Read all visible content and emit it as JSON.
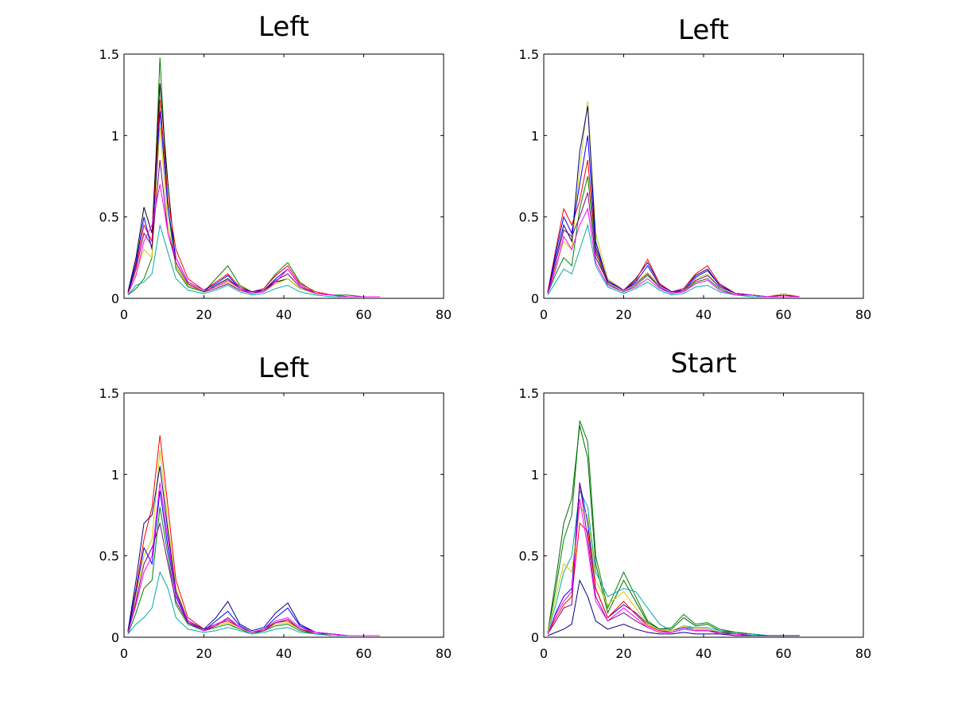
{
  "chart_data": [
    {
      "type": "line",
      "title": "Left",
      "xlim": [
        0,
        80
      ],
      "ylim": [
        0,
        1.5
      ],
      "xticks": [
        "0",
        "20",
        "40",
        "60",
        "80"
      ],
      "yticks": [
        "0",
        "0.5",
        "1",
        "1.5"
      ],
      "grid": false,
      "legend": "none",
      "x": [
        1,
        3,
        5,
        7,
        9,
        11,
        13,
        16,
        20,
        23,
        26,
        29,
        32,
        35,
        38,
        41,
        44,
        48,
        52,
        56,
        60,
        64
      ],
      "series": [
        {
          "color": "#008000",
          "values": [
            0.02,
            0.06,
            0.12,
            0.25,
            1.48,
            0.55,
            0.18,
            0.07,
            0.04,
            0.12,
            0.2,
            0.08,
            0.04,
            0.06,
            0.15,
            0.22,
            0.1,
            0.03,
            0.02,
            0.02,
            0.01,
            0.01
          ]
        },
        {
          "color": "#000000",
          "values": [
            0.04,
            0.25,
            0.56,
            0.4,
            1.32,
            0.7,
            0.2,
            0.08,
            0.04,
            0.08,
            0.12,
            0.06,
            0.03,
            0.05,
            0.1,
            0.12,
            0.06,
            0.03,
            0.02,
            0.01,
            0.01,
            0.01
          ]
        },
        {
          "color": "#ff0000",
          "values": [
            0.03,
            0.2,
            0.45,
            0.35,
            1.22,
            0.6,
            0.3,
            0.12,
            0.05,
            0.1,
            0.15,
            0.07,
            0.04,
            0.06,
            0.14,
            0.2,
            0.09,
            0.04,
            0.02,
            0.01,
            0.01,
            0.01
          ]
        },
        {
          "color": "#0000ff",
          "values": [
            0.03,
            0.22,
            0.5,
            0.3,
            1.15,
            0.55,
            0.25,
            0.1,
            0.05,
            0.09,
            0.14,
            0.06,
            0.04,
            0.05,
            0.12,
            0.18,
            0.08,
            0.03,
            0.02,
            0.01,
            0.01,
            0.01
          ]
        },
        {
          "color": "#cccc00",
          "values": [
            0.02,
            0.15,
            0.3,
            0.25,
            1.05,
            0.45,
            0.2,
            0.08,
            0.04,
            0.07,
            0.1,
            0.05,
            0.03,
            0.04,
            0.09,
            0.12,
            0.06,
            0.03,
            0.02,
            0.01,
            0.01,
            0.01
          ]
        },
        {
          "color": "#800080",
          "values": [
            0.03,
            0.18,
            0.4,
            0.32,
            0.85,
            0.4,
            0.22,
            0.09,
            0.04,
            0.06,
            0.09,
            0.05,
            0.03,
            0.05,
            0.11,
            0.15,
            0.07,
            0.03,
            0.02,
            0.01,
            0.01,
            0.01
          ]
        },
        {
          "color": "#00aaaa",
          "values": [
            0.02,
            0.08,
            0.1,
            0.15,
            0.45,
            0.28,
            0.12,
            0.05,
            0.03,
            0.05,
            0.08,
            0.04,
            0.02,
            0.03,
            0.06,
            0.08,
            0.04,
            0.02,
            0.01,
            0.01,
            0.01,
            0.01
          ]
        },
        {
          "color": "#ff00ff",
          "values": [
            0.03,
            0.14,
            0.35,
            0.45,
            0.7,
            0.4,
            0.25,
            0.1,
            0.05,
            0.07,
            0.11,
            0.06,
            0.03,
            0.04,
            0.1,
            0.18,
            0.08,
            0.03,
            0.02,
            0.01,
            0.01,
            0.01
          ]
        }
      ]
    },
    {
      "type": "line",
      "title": "Left",
      "xlim": [
        0,
        80
      ],
      "ylim": [
        0,
        1.5
      ],
      "xticks": [
        "0",
        "20",
        "40",
        "60",
        "80"
      ],
      "yticks": [
        "0",
        "0.5",
        "1",
        "1.5"
      ],
      "grid": false,
      "legend": "none",
      "x": [
        1,
        3,
        5,
        7,
        9,
        11,
        13,
        16,
        20,
        23,
        26,
        29,
        32,
        35,
        38,
        41,
        44,
        48,
        52,
        56,
        60,
        64
      ],
      "series": [
        {
          "color": "#cccc00",
          "values": [
            0.03,
            0.2,
            0.35,
            0.3,
            0.8,
            1.21,
            0.4,
            0.12,
            0.05,
            0.1,
            0.16,
            0.08,
            0.04,
            0.05,
            0.12,
            0.15,
            0.07,
            0.03,
            0.02,
            0.01,
            0.03,
            0.01
          ]
        },
        {
          "color": "#000080",
          "values": [
            0.04,
            0.25,
            0.45,
            0.35,
            0.9,
            1.18,
            0.35,
            0.1,
            0.05,
            0.12,
            0.22,
            0.09,
            0.04,
            0.06,
            0.14,
            0.18,
            0.08,
            0.03,
            0.02,
            0.01,
            0.02,
            0.01
          ]
        },
        {
          "color": "#ff0000",
          "values": [
            0.04,
            0.3,
            0.55,
            0.45,
            0.6,
            0.85,
            0.3,
            0.1,
            0.05,
            0.11,
            0.24,
            0.09,
            0.04,
            0.06,
            0.15,
            0.2,
            0.09,
            0.03,
            0.02,
            0.01,
            0.02,
            0.01
          ]
        },
        {
          "color": "#0000ff",
          "values": [
            0.03,
            0.28,
            0.5,
            0.4,
            0.7,
            1.0,
            0.32,
            0.11,
            0.05,
            0.1,
            0.2,
            0.08,
            0.04,
            0.05,
            0.13,
            0.17,
            0.08,
            0.03,
            0.02,
            0.01,
            0.01,
            0.01
          ]
        },
        {
          "color": "#008000",
          "values": [
            0.03,
            0.15,
            0.25,
            0.2,
            0.55,
            0.75,
            0.28,
            0.09,
            0.04,
            0.08,
            0.14,
            0.07,
            0.03,
            0.04,
            0.1,
            0.12,
            0.06,
            0.02,
            0.02,
            0.01,
            0.01,
            0.01
          ]
        },
        {
          "color": "#800080",
          "values": [
            0.03,
            0.22,
            0.42,
            0.38,
            0.5,
            0.65,
            0.25,
            0.1,
            0.05,
            0.09,
            0.15,
            0.07,
            0.03,
            0.05,
            0.11,
            0.14,
            0.07,
            0.03,
            0.02,
            0.01,
            0.02,
            0.01
          ]
        },
        {
          "color": "#00aaaa",
          "values": [
            0.02,
            0.1,
            0.18,
            0.15,
            0.3,
            0.45,
            0.2,
            0.07,
            0.03,
            0.06,
            0.1,
            0.05,
            0.02,
            0.03,
            0.07,
            0.08,
            0.04,
            0.02,
            0.01,
            0.01,
            0.01,
            0.01
          ]
        },
        {
          "color": "#ff00ff",
          "values": [
            0.03,
            0.18,
            0.38,
            0.3,
            0.45,
            0.55,
            0.22,
            0.08,
            0.04,
            0.07,
            0.12,
            0.06,
            0.03,
            0.04,
            0.09,
            0.11,
            0.05,
            0.02,
            0.02,
            0.01,
            0.01,
            0.01
          ]
        }
      ]
    },
    {
      "type": "line",
      "title": "Left",
      "xlim": [
        0,
        80
      ],
      "ylim": [
        0,
        1.5
      ],
      "xticks": [
        "0",
        "20",
        "40",
        "60",
        "80"
      ],
      "yticks": [
        "0",
        "0.5",
        "1",
        "1.5"
      ],
      "grid": false,
      "legend": "none",
      "x": [
        1,
        3,
        5,
        7,
        9,
        11,
        13,
        16,
        20,
        23,
        26,
        29,
        32,
        35,
        38,
        41,
        44,
        48,
        52,
        56,
        60,
        64
      ],
      "series": [
        {
          "color": "#ff0000",
          "values": [
            0.04,
            0.3,
            0.6,
            0.8,
            1.24,
            0.8,
            0.35,
            0.12,
            0.05,
            0.08,
            0.1,
            0.06,
            0.03,
            0.05,
            0.09,
            0.1,
            0.05,
            0.03,
            0.02,
            0.01,
            0.01,
            0.01
          ]
        },
        {
          "color": "#cccc00",
          "values": [
            0.03,
            0.25,
            0.5,
            0.6,
            1.15,
            0.7,
            0.3,
            0.1,
            0.04,
            0.07,
            0.09,
            0.05,
            0.03,
            0.04,
            0.08,
            0.09,
            0.05,
            0.02,
            0.02,
            0.01,
            0.01,
            0.01
          ]
        },
        {
          "color": "#000080",
          "values": [
            0.04,
            0.35,
            0.7,
            0.75,
            1.05,
            0.65,
            0.28,
            0.1,
            0.05,
            0.12,
            0.22,
            0.08,
            0.04,
            0.06,
            0.15,
            0.21,
            0.08,
            0.03,
            0.02,
            0.01,
            0.01,
            0.01
          ]
        },
        {
          "color": "#0000ff",
          "values": [
            0.03,
            0.28,
            0.55,
            0.45,
            0.9,
            0.55,
            0.25,
            0.09,
            0.04,
            0.1,
            0.16,
            0.07,
            0.03,
            0.05,
            0.12,
            0.18,
            0.07,
            0.03,
            0.02,
            0.01,
            0.01,
            0.01
          ]
        },
        {
          "color": "#008000",
          "values": [
            0.02,
            0.15,
            0.3,
            0.35,
            0.8,
            0.5,
            0.2,
            0.08,
            0.04,
            0.06,
            0.08,
            0.05,
            0.02,
            0.04,
            0.07,
            0.08,
            0.04,
            0.02,
            0.01,
            0.01,
            0.01,
            0.01
          ]
        },
        {
          "color": "#800080",
          "values": [
            0.03,
            0.22,
            0.45,
            0.55,
            0.7,
            0.45,
            0.22,
            0.09,
            0.04,
            0.07,
            0.12,
            0.06,
            0.03,
            0.04,
            0.09,
            0.11,
            0.05,
            0.02,
            0.02,
            0.01,
            0.01,
            0.01
          ]
        },
        {
          "color": "#00aaaa",
          "values": [
            0.02,
            0.08,
            0.12,
            0.18,
            0.4,
            0.3,
            0.12,
            0.05,
            0.03,
            0.04,
            0.06,
            0.04,
            0.02,
            0.03,
            0.05,
            0.06,
            0.03,
            0.02,
            0.01,
            0.01,
            0.01,
            0.01
          ]
        },
        {
          "color": "#ff00ff",
          "values": [
            0.03,
            0.2,
            0.4,
            0.5,
            0.95,
            0.6,
            0.26,
            0.1,
            0.04,
            0.08,
            0.11,
            0.06,
            0.03,
            0.05,
            0.1,
            0.12,
            0.06,
            0.03,
            0.02,
            0.01,
            0.01,
            0.01
          ]
        }
      ]
    },
    {
      "type": "line",
      "title": "Start",
      "xlim": [
        0,
        80
      ],
      "ylim": [
        0,
        1.5
      ],
      "xticks": [
        "0",
        "20",
        "40",
        "60",
        "80"
      ],
      "yticks": [
        "0",
        "0.5",
        "1",
        "1.5"
      ],
      "grid": false,
      "legend": "none",
      "x": [
        1,
        3,
        5,
        7,
        9,
        11,
        13,
        16,
        20,
        23,
        26,
        29,
        32,
        35,
        38,
        41,
        44,
        48,
        52,
        56,
        60,
        64
      ],
      "series": [
        {
          "color": "#008000",
          "values": [
            0.03,
            0.3,
            0.6,
            0.75,
            1.33,
            1.2,
            0.5,
            0.18,
            0.4,
            0.25,
            0.1,
            0.05,
            0.06,
            0.14,
            0.08,
            0.09,
            0.05,
            0.03,
            0.02,
            0.01,
            0.01,
            0.01
          ]
        },
        {
          "color": "#006400",
          "values": [
            0.03,
            0.35,
            0.7,
            0.85,
            1.3,
            1.1,
            0.45,
            0.15,
            0.35,
            0.22,
            0.09,
            0.05,
            0.05,
            0.12,
            0.07,
            0.08,
            0.04,
            0.03,
            0.02,
            0.01,
            0.01,
            0.01
          ]
        },
        {
          "color": "#00aaaa",
          "values": [
            0.03,
            0.2,
            0.4,
            0.5,
            0.9,
            0.8,
            0.4,
            0.25,
            0.3,
            0.28,
            0.18,
            0.08,
            0.04,
            0.07,
            0.06,
            0.06,
            0.04,
            0.02,
            0.02,
            0.01,
            0.01,
            0.01
          ]
        },
        {
          "color": "#0000ff",
          "values": [
            0.02,
            0.15,
            0.25,
            0.3,
            0.95,
            0.7,
            0.3,
            0.12,
            0.2,
            0.15,
            0.08,
            0.04,
            0.04,
            0.06,
            0.05,
            0.05,
            0.03,
            0.02,
            0.01,
            0.01,
            0.01,
            0.01
          ]
        },
        {
          "color": "#cccc00",
          "values": [
            0.03,
            0.25,
            0.45,
            0.4,
            0.8,
            0.75,
            0.35,
            0.2,
            0.28,
            0.18,
            0.08,
            0.04,
            0.04,
            0.07,
            0.05,
            0.05,
            0.03,
            0.02,
            0.01,
            0.01,
            0.01,
            0.01
          ]
        },
        {
          "color": "#ff0000",
          "values": [
            0.02,
            0.12,
            0.2,
            0.25,
            0.7,
            0.65,
            0.3,
            0.12,
            0.22,
            0.14,
            0.07,
            0.04,
            0.03,
            0.05,
            0.04,
            0.04,
            0.03,
            0.02,
            0.01,
            0.01,
            0.01,
            0.01
          ]
        },
        {
          "color": "#800080",
          "values": [
            0.02,
            0.1,
            0.18,
            0.2,
            0.95,
            0.6,
            0.25,
            0.1,
            0.15,
            0.1,
            0.06,
            0.03,
            0.03,
            0.05,
            0.04,
            0.04,
            0.03,
            0.02,
            0.01,
            0.01,
            0.01,
            0.01
          ]
        },
        {
          "color": "#ff00ff",
          "values": [
            0.02,
            0.14,
            0.22,
            0.28,
            0.85,
            0.55,
            0.22,
            0.1,
            0.18,
            0.12,
            0.06,
            0.03,
            0.03,
            0.05,
            0.04,
            0.04,
            0.02,
            0.02,
            0.01,
            0.01,
            0.01,
            0.01
          ]
        },
        {
          "color": "#000080",
          "values": [
            0.01,
            0.03,
            0.05,
            0.08,
            0.35,
            0.25,
            0.1,
            0.05,
            0.08,
            0.05,
            0.03,
            0.02,
            0.02,
            0.03,
            0.02,
            0.02,
            0.02,
            0.01,
            0.01,
            0.01,
            0.01,
            0.01
          ]
        }
      ]
    }
  ]
}
